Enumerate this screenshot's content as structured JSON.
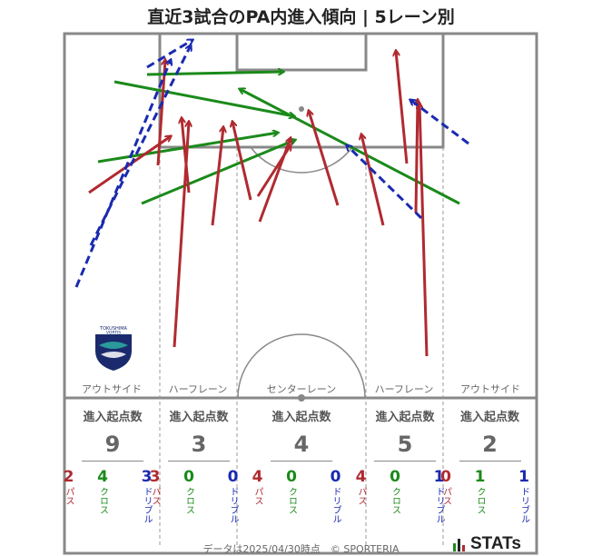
{
  "title": "直近3試合のPA内進入傾向 | 5レーン別",
  "lane_labels": [
    "アウトサイド",
    "ハーフレーン",
    "センターレーン",
    "ハーフレーン",
    "アウトサイド"
  ],
  "stats_header": "進入起点数",
  "legend_labels": {
    "pass": "パス",
    "cross": "クロス",
    "dribble": "ドリブル"
  },
  "lanes": [
    {
      "total": "9",
      "pass": "2",
      "cross": "4",
      "dribble": "3"
    },
    {
      "total": "3",
      "pass": "3",
      "cross": "0",
      "dribble": "0"
    },
    {
      "total": "4",
      "pass": "4",
      "cross": "0",
      "dribble": "0"
    },
    {
      "total": "5",
      "pass": "4",
      "cross": "0",
      "dribble": "1"
    },
    {
      "total": "2",
      "pass": "0",
      "cross": "1",
      "dribble": "1"
    }
  ],
  "team_logo": {
    "text_line1": "TOKUSHIMA",
    "text_line2": "VORTIS",
    "colors": [
      "#1a2a6c",
      "#2a9a9a"
    ]
  },
  "footer": "データは2025/04/30時点　© SPORTERIA",
  "brand": "STATs",
  "colors": {
    "pass": "#b02a30",
    "cross": "#1a8a1a",
    "dribble": "#1a2ab0",
    "lines": "#888888"
  }
}
